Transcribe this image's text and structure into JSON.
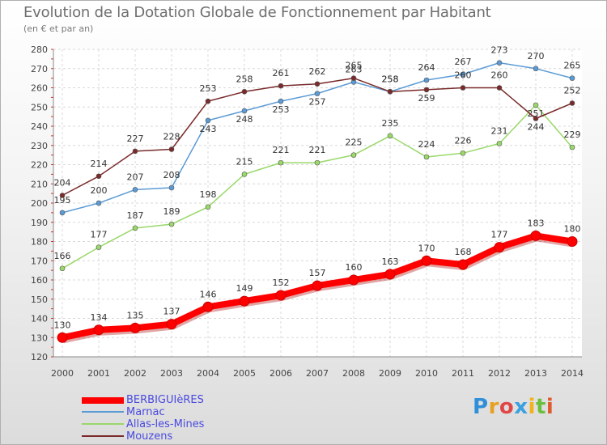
{
  "chart_data": {
    "type": "line",
    "title": "Evolution de la Dotation Globale de Fonctionnement par Habitant",
    "subtitle": "(en € et par an)",
    "x": [
      2000,
      2001,
      2002,
      2003,
      2004,
      2005,
      2006,
      2007,
      2008,
      2009,
      2010,
      2011,
      2012,
      2013,
      2014
    ],
    "ylim": [
      120,
      280
    ],
    "yticks": [
      120,
      130,
      140,
      150,
      160,
      170,
      180,
      190,
      200,
      210,
      220,
      230,
      240,
      250,
      260,
      270,
      280
    ],
    "series": [
      {
        "name": "BERBIGUIèRES",
        "color": "#ff0000",
        "values": [
          130,
          134,
          135,
          137,
          146,
          149,
          152,
          157,
          160,
          163,
          170,
          168,
          177,
          183,
          180
        ]
      },
      {
        "name": "Marnac",
        "color": "#5b9bd5",
        "values": [
          195,
          200,
          207,
          208,
          243,
          248,
          253,
          257,
          263,
          258,
          264,
          267,
          273,
          270,
          265
        ]
      },
      {
        "name": "Allas-les-Mines",
        "color": "#9ad86a",
        "values": [
          166,
          177,
          187,
          189,
          198,
          215,
          221,
          221,
          225,
          235,
          224,
          226,
          231,
          251,
          229
        ]
      },
      {
        "name": "Mouzens",
        "color": "#7a2a2a",
        "values": [
          204,
          214,
          227,
          228,
          253,
          258,
          261,
          262,
          265,
          258,
          259,
          260,
          260,
          244,
          252
        ]
      }
    ]
  },
  "legend": [
    {
      "label": "BERBIGUIèRES",
      "color": "#ff0000"
    },
    {
      "label": "Marnac",
      "color": "#5b9bd5"
    },
    {
      "label": "Allas-les-Mines",
      "color": "#9ad86a"
    },
    {
      "label": "Mouzens",
      "color": "#7a2a2a"
    }
  ],
  "logo": {
    "letters": [
      "P",
      "r",
      "o",
      "x",
      "i",
      "t",
      "i"
    ]
  }
}
